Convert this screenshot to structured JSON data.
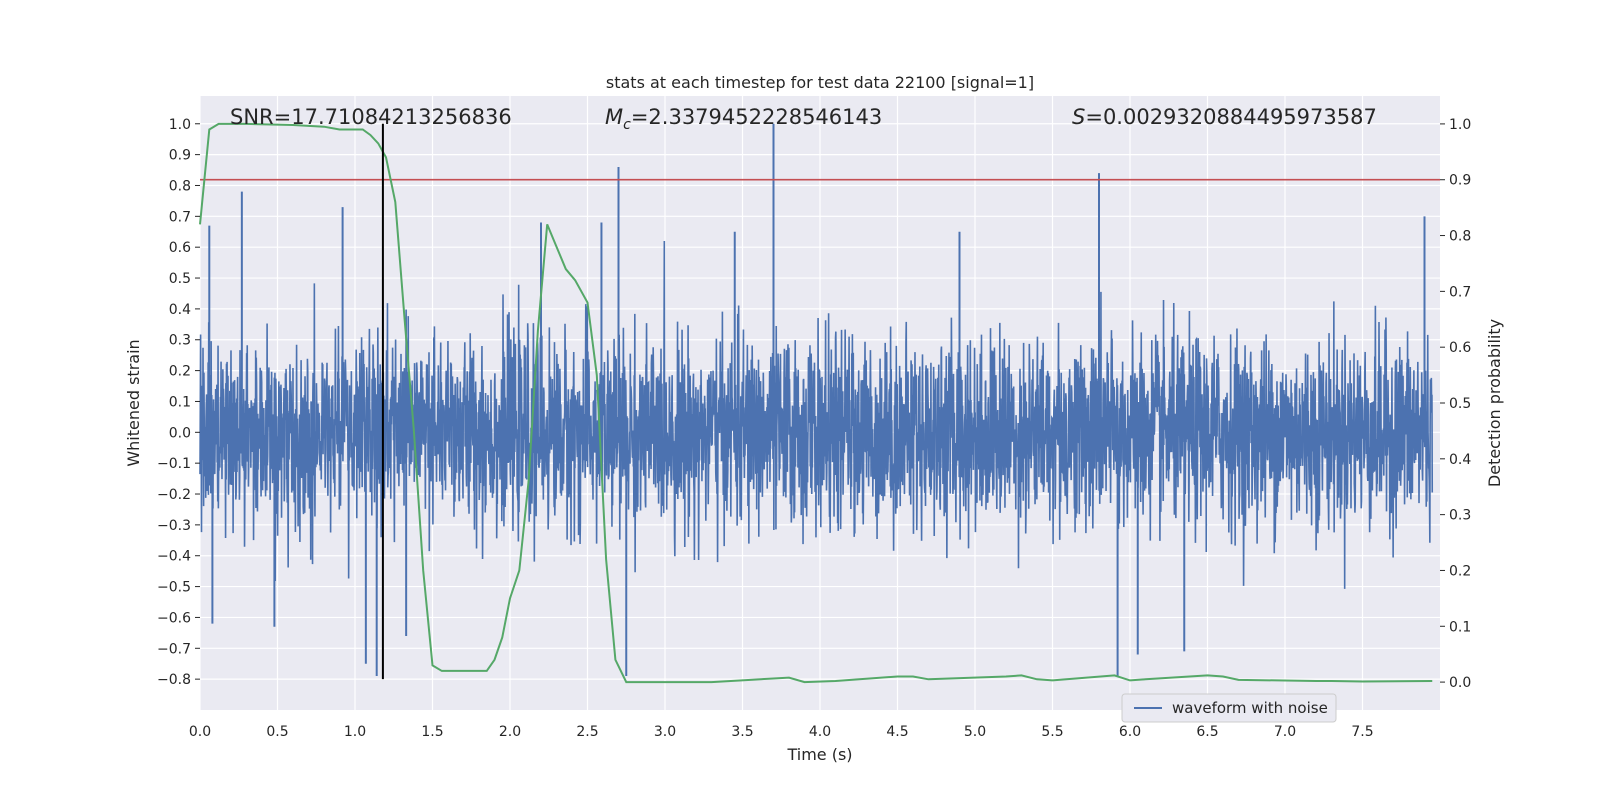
{
  "chart_data": {
    "type": "line",
    "title": "stats at each timestep for test data 22100 [signal=1]",
    "xlabel": "Time (s)",
    "ylabel": "Whitened strain",
    "y2label": "Detection probability",
    "xlim": [
      0.0,
      8.0
    ],
    "ylim": [
      -0.9,
      1.09
    ],
    "y2lim": [
      -0.05,
      1.05
    ],
    "x_ticks": [
      0.0,
      0.5,
      1.0,
      1.5,
      2.0,
      2.5,
      3.0,
      3.5,
      4.0,
      4.5,
      5.0,
      5.5,
      6.0,
      6.5,
      7.0,
      7.5
    ],
    "x_tick_labels": [
      "0.0",
      "0.5",
      "1.0",
      "1.5",
      "2.0",
      "2.5",
      "3.0",
      "3.5",
      "4.0",
      "4.5",
      "5.0",
      "5.5",
      "6.0",
      "6.5",
      "7.0",
      "7.5"
    ],
    "y_ticks": [
      1.0,
      0.9,
      0.8,
      0.7,
      0.6,
      0.5,
      0.4,
      0.3,
      0.2,
      0.1,
      0.0,
      -0.1,
      -0.2,
      -0.3,
      -0.4,
      -0.5,
      -0.6,
      -0.7,
      -0.8
    ],
    "y_tick_labels": [
      "1.0",
      "0.9",
      "0.8",
      "0.7",
      "0.6",
      "0.5",
      "0.4",
      "0.3",
      "0.2",
      "0.1",
      "0.0",
      "−0.1",
      "−0.2",
      "−0.3",
      "−0.4",
      "−0.5",
      "−0.6",
      "−0.7",
      "−0.8"
    ],
    "y2_ticks": [
      1.0,
      0.9,
      0.8,
      0.7,
      0.6,
      0.5,
      0.4,
      0.3,
      0.2,
      0.1,
      0.0
    ],
    "y2_tick_labels": [
      "1.0",
      "0.9",
      "0.8",
      "0.7",
      "0.6",
      "0.5",
      "0.4",
      "0.3",
      "0.2",
      "0.1",
      "0.0"
    ],
    "grid": true,
    "annotations": {
      "snr": "SNR=17.71084213256836",
      "mc_symbol": "M",
      "mc_subscript": "c",
      "mc_value": "=2.3379452228546143",
      "s_symbol": "S",
      "s_value": "=0.0029320884495973587"
    },
    "legend": {
      "placement": "bottom-right",
      "entries": [
        "waveform with noise"
      ]
    },
    "threshold_y2": 0.9,
    "event_time": 1.18,
    "waveform": {
      "name": "waveform with noise",
      "typical_amplitude": 0.3,
      "spikes": [
        {
          "x": 0.27,
          "y": 0.78
        },
        {
          "x": 0.92,
          "y": 0.73
        },
        {
          "x": 0.06,
          "y": 0.67
        },
        {
          "x": 2.7,
          "y": 0.86
        },
        {
          "x": 3.7,
          "y": 1.0
        },
        {
          "x": 5.8,
          "y": 0.84
        },
        {
          "x": 7.9,
          "y": 0.7
        },
        {
          "x": 2.2,
          "y": 0.68
        },
        {
          "x": 2.59,
          "y": 0.68
        },
        {
          "x": 1.07,
          "y": -0.75
        },
        {
          "x": 1.14,
          "y": -0.79
        },
        {
          "x": 1.33,
          "y": -0.66
        },
        {
          "x": 2.75,
          "y": -0.79
        },
        {
          "x": 5.92,
          "y": -0.79
        },
        {
          "x": 6.05,
          "y": -0.72
        },
        {
          "x": 6.35,
          "y": -0.71
        },
        {
          "x": 0.48,
          "y": -0.63
        },
        {
          "x": 0.08,
          "y": -0.62
        },
        {
          "x": 3.45,
          "y": 0.65
        },
        {
          "x": 4.9,
          "y": 0.65
        }
      ]
    },
    "detection_probability": {
      "x": [
        0.0,
        0.06,
        0.12,
        0.3,
        0.6,
        0.8,
        0.9,
        0.95,
        1.05,
        1.1,
        1.15,
        1.2,
        1.26,
        1.32,
        1.38,
        1.44,
        1.5,
        1.56,
        1.62,
        1.7,
        1.8,
        1.85,
        1.9,
        1.95,
        2.0,
        2.06,
        2.12,
        2.18,
        2.24,
        2.3,
        2.36,
        2.42,
        2.5,
        2.56,
        2.62,
        2.68,
        2.75,
        2.85,
        3.0,
        3.3,
        3.55,
        3.8,
        3.9,
        4.1,
        4.5,
        4.6,
        4.7,
        5.2,
        5.3,
        5.4,
        5.5,
        5.9,
        6.0,
        6.1,
        6.5,
        6.6,
        6.7,
        7.2,
        7.3,
        7.5,
        7.95
      ],
      "y": [
        0.82,
        0.99,
        1.0,
        1.0,
        0.998,
        0.995,
        0.99,
        0.99,
        0.99,
        0.98,
        0.965,
        0.94,
        0.86,
        0.65,
        0.45,
        0.2,
        0.03,
        0.02,
        0.02,
        0.02,
        0.02,
        0.02,
        0.04,
        0.08,
        0.15,
        0.2,
        0.36,
        0.63,
        0.82,
        0.78,
        0.74,
        0.72,
        0.68,
        0.55,
        0.22,
        0.04,
        0.0,
        0.0,
        0.0,
        0.0,
        0.004,
        0.008,
        0.0,
        0.002,
        0.01,
        0.01,
        0.005,
        0.01,
        0.012,
        0.005,
        0.003,
        0.012,
        0.003,
        0.005,
        0.012,
        0.01,
        0.004,
        0.002,
        0.002,
        0.001,
        0.002
      ]
    },
    "colors": {
      "waveform": "#4c72b0",
      "probability": "#55a868",
      "threshold": "#c44e52",
      "event_line": "#000000",
      "plot_background": "#eaeaf2",
      "grid": "#ffffff"
    }
  }
}
